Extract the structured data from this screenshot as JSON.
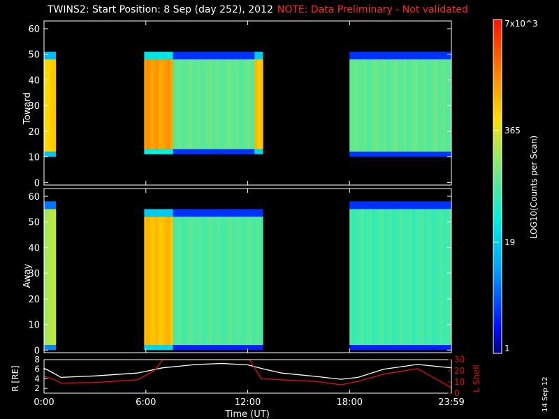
{
  "header": {
    "title": "TWINS2: Start Position:  8 Sep (day 252), 2012",
    "note": "NOTE: Data Preliminary - Not validated"
  },
  "date_stamp": "14 Sep 12",
  "colors": {
    "background": "#000000",
    "axes": "#ffffff",
    "note": "#ff2a2a",
    "r_line": "#ffffff",
    "lshell_line": "#e01010"
  },
  "chart_data": [
    {
      "type": "heatmap",
      "ylabel": "Toward",
      "ylim": [
        -1,
        63
      ],
      "yticks": [
        0,
        10,
        20,
        30,
        40,
        50,
        60
      ],
      "xlim": [
        0,
        24
      ],
      "x_tick_values": [
        0,
        6,
        12,
        18,
        24
      ],
      "colorscale": "log",
      "segments": [
        {
          "start": 0.0,
          "end": 0.7,
          "low": 12,
          "high": 48,
          "level": 0.72,
          "note": "edge fill to bottom at end"
        },
        {
          "start": 5.9,
          "end": 7.6,
          "low": 13,
          "high": 48,
          "level": 0.8
        },
        {
          "start": 7.6,
          "end": 12.8,
          "low": 13,
          "high": 48,
          "level": 0.52
        },
        {
          "start": 12.4,
          "end": 12.9,
          "low": 13,
          "high": 48,
          "level": 0.75
        },
        {
          "start": 18.0,
          "end": 24.0,
          "low": 12,
          "high": 48,
          "level": 0.52
        }
      ]
    },
    {
      "type": "heatmap",
      "ylabel": "Away",
      "ylim": [
        -1,
        63
      ],
      "yticks": [
        0,
        10,
        20,
        30,
        40,
        50,
        60
      ],
      "xlim": [
        0,
        24
      ],
      "colorscale": "log",
      "segments": [
        {
          "start": 0.0,
          "end": 0.7,
          "low": 2,
          "high": 55,
          "level": 0.62
        },
        {
          "start": 5.9,
          "end": 7.6,
          "low": 2,
          "high": 52,
          "level": 0.75
        },
        {
          "start": 7.6,
          "end": 12.9,
          "low": 2,
          "high": 52,
          "level": 0.5
        },
        {
          "start": 18.0,
          "end": 24.0,
          "low": 2,
          "high": 55,
          "level": 0.48
        }
      ]
    },
    {
      "type": "line",
      "ylabel": "R [RE]",
      "ylabel_right": "L Shell",
      "ylim": [
        1,
        8
      ],
      "yticks": [
        2,
        4,
        6,
        8
      ],
      "y2lim": [
        0,
        30
      ],
      "y2ticks": [
        0,
        10,
        20,
        30
      ],
      "xlabel": "Time (UT)",
      "x_tick_labels": [
        "0:00",
        "6:00",
        "12:00",
        "18:00",
        "23:59"
      ],
      "series": [
        {
          "name": "R",
          "color": "#ffffff",
          "x": [
            0,
            0.5,
            1,
            3,
            5.5,
            7,
            9,
            10.5,
            12,
            13,
            14,
            16,
            17.5,
            18.5,
            20,
            22,
            23.99
          ],
          "values": [
            6.2,
            5.3,
            4.3,
            4.6,
            5.2,
            6.3,
            7.0,
            7.2,
            6.9,
            6.0,
            5.2,
            4.5,
            3.9,
            4.3,
            6.0,
            7.0,
            6.3
          ]
        },
        {
          "name": "L Shell",
          "color": "#e01010",
          "axis": "right",
          "x": [
            0,
            0.5,
            1,
            3,
            5.5,
            6.5,
            7.0,
            12.1,
            12.8,
            14,
            16,
            17.5,
            18.5,
            20,
            22,
            23.99
          ],
          "values": [
            15,
            13,
            9,
            9.5,
            12,
            20,
            31,
            30,
            13,
            12,
            10.5,
            7.5,
            10.5,
            17,
            22,
            5
          ]
        }
      ]
    }
  ],
  "colorbar": {
    "label": "LOG10(Counts per Scan)",
    "ticks": [
      "7x10^3",
      "365",
      "19",
      "1"
    ],
    "tick_fracs": [
      1.0,
      0.667,
      0.333,
      0.0
    ]
  }
}
